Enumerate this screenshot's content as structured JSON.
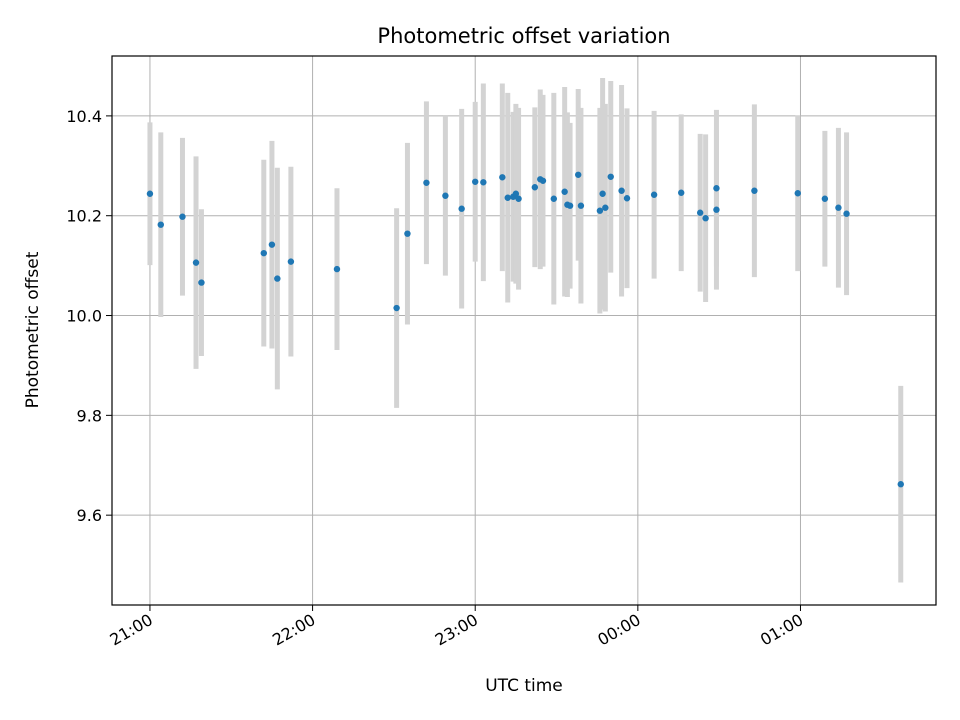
{
  "chart_data": {
    "type": "scatter",
    "title": "Photometric offset variation",
    "xlabel": "UTC time",
    "ylabel": "Photometric offset",
    "grid": true,
    "x_tick_labels": [
      "21:00",
      "22:00",
      "23:00",
      "00:00",
      "01:00"
    ],
    "y_tick_labels": [
      "9.6",
      "9.8",
      "10.0",
      "10.2",
      "10.4"
    ],
    "x_ticks_min": [
      0,
      60,
      120,
      180,
      240
    ],
    "y_ticks": [
      9.6,
      9.8,
      10.0,
      10.2,
      10.4
    ],
    "xlim_min": [
      -14,
      290
    ],
    "ylim": [
      9.42,
      10.52
    ],
    "colors": {
      "points": "#1f77b4",
      "errorbars": "#d3d3d3",
      "grid": "#b0b0b0"
    },
    "series": [
      {
        "x_min": [
          0,
          4,
          12,
          17,
          19,
          42,
          45,
          47,
          52,
          69,
          91,
          95,
          102,
          109,
          115,
          120,
          123,
          130,
          132,
          134,
          135,
          136,
          142,
          144,
          145,
          149,
          153,
          154,
          155,
          158,
          159,
          166,
          167,
          168,
          170,
          174,
          176,
          186,
          196,
          203,
          205,
          209,
          209,
          223,
          239,
          249,
          254,
          257,
          277
        ],
        "y": [
          10.244,
          10.182,
          10.198,
          10.106,
          10.066,
          10.125,
          10.142,
          10.074,
          10.108,
          10.093,
          10.015,
          10.164,
          10.266,
          10.24,
          10.214,
          10.268,
          10.267,
          10.277,
          10.236,
          10.238,
          10.244,
          10.234,
          10.257,
          10.273,
          10.27,
          10.234,
          10.248,
          10.222,
          10.22,
          10.282,
          10.22,
          10.21,
          10.244,
          10.216,
          10.278,
          10.25,
          10.235,
          10.242,
          10.246,
          10.206,
          10.195,
          10.212,
          10.255,
          10.25,
          10.245,
          10.234,
          10.216,
          10.204,
          9.662
        ],
        "err": [
          0.143,
          0.185,
          0.158,
          0.213,
          0.147,
          0.187,
          0.208,
          0.222,
          0.19,
          0.162,
          0.2,
          0.182,
          0.163,
          0.16,
          0.2,
          0.16,
          0.198,
          0.188,
          0.21,
          0.17,
          0.18,
          0.182,
          0.16,
          0.18,
          0.172,
          0.212,
          0.21,
          0.185,
          0.166,
          0.172,
          0.196,
          0.206,
          0.232,
          0.208,
          0.192,
          0.212,
          0.18,
          0.168,
          0.157,
          0.158,
          0.168,
          0.16,
          0.157,
          0.173,
          0.156,
          0.136,
          0.16,
          0.163,
          0.197
        ]
      }
    ]
  }
}
